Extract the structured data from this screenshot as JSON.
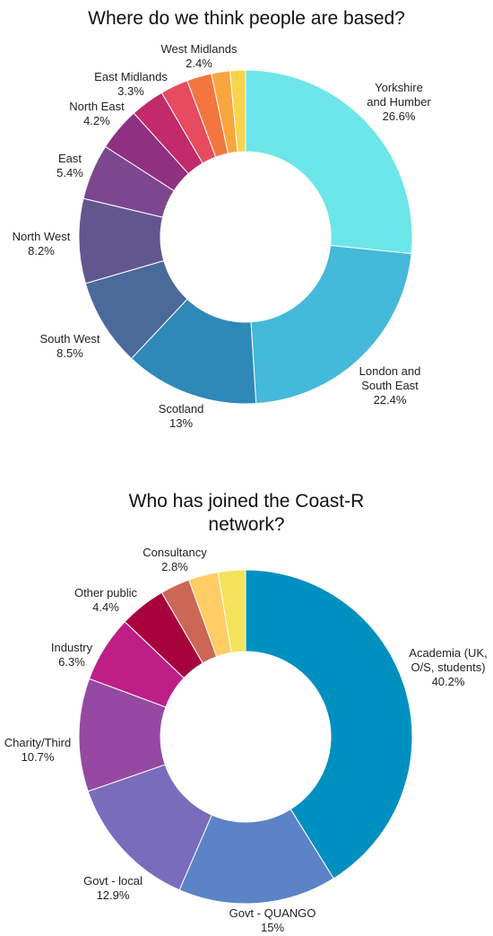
{
  "chart_data": [
    {
      "type": "pie",
      "title": "Where do we think people are based?",
      "categories": [
        "Yorkshire and Humber",
        "London and South East",
        "Scotland",
        "South West",
        "North West",
        "East",
        "North East",
        "East Midlands",
        "",
        "West Midlands",
        "",
        ""
      ],
      "values": [
        26.6,
        22.4,
        13,
        8.5,
        8.2,
        5.4,
        4.2,
        3.3,
        2.7,
        2.4,
        1.8,
        1.5
      ],
      "label_lines": [
        [
          "Yorkshire",
          "and Humber",
          "26.6%"
        ],
        [
          "London and",
          "South East",
          "22.4%"
        ],
        [
          "Scotland",
          "13%"
        ],
        [
          "South West",
          "8.5%"
        ],
        [
          "North West",
          "8.2%"
        ],
        [
          "East",
          "5.4%"
        ],
        [
          "North East",
          "4.2%"
        ],
        [
          "East Midlands",
          "3.3%"
        ],
        [],
        [
          "West Midlands",
          "2.4%"
        ],
        [],
        []
      ],
      "colors": [
        "#6ce6e8",
        "#45b9d9",
        "#2e88b8",
        "#4a6a9a",
        "#62568f",
        "#7d4790",
        "#8f3080",
        "#c22a6a",
        "#e64b5f",
        "#f3763e",
        "#f9a63e",
        "#f7d44c"
      ]
    },
    {
      "type": "pie",
      "title": "Who has joined the Coast-R network?",
      "categories": [
        "Academia (UK, O/S, students)",
        "Govt - QUANGO",
        "Govt - local",
        "Charity/Third",
        "Industry",
        "Other public",
        "",
        "Consultancy",
        ""
      ],
      "values": [
        40.2,
        15,
        12.9,
        10.7,
        6.3,
        4.4,
        2.8,
        2.8,
        2.6
      ],
      "label_lines": [
        [
          "Academia (UK,",
          "O/S, students)",
          "40.2%"
        ],
        [
          "Govt - QUANGO",
          "15%"
        ],
        [
          "Govt - local",
          "12.9%"
        ],
        [
          "Charity/Third",
          "10.7%"
        ],
        [
          "Industry",
          "6.3%"
        ],
        [
          "Other public",
          "4.4%"
        ],
        [],
        [
          "Consultancy",
          "2.8%"
        ],
        []
      ],
      "colors": [
        "#0090c0",
        "#5b83c6",
        "#7a6cbc",
        "#9549a3",
        "#bd1f86",
        "#a8023d",
        "#cc6655",
        "#ffcc66",
        "#f2e35a"
      ]
    }
  ]
}
